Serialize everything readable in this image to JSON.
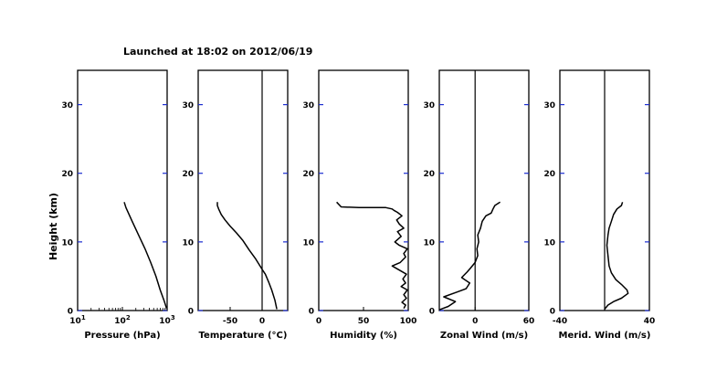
{
  "page": {
    "title": "Launched at 18:02 on 2012/06/19",
    "ylabel": "Height (km)"
  },
  "chart_data": [
    {
      "type": "line",
      "id": "pressure",
      "xlabel": "Pressure (hPa)",
      "xscale": "log",
      "xlim": [
        10,
        1000
      ],
      "ylim": [
        0,
        35
      ],
      "x_ticks": [
        10,
        100,
        1000
      ],
      "x_tick_labels": [
        "10",
        "10",
        "10"
      ],
      "x_tick_exponents": [
        "1",
        "2",
        "3"
      ],
      "y_ticks": [
        0,
        10,
        20,
        30
      ],
      "y_tick_labels": [
        "0",
        "10",
        "20",
        "30"
      ],
      "series": [
        {
          "x": [
            970,
            850,
            700,
            560,
            430,
            320,
            230,
            165,
            120,
            110
          ],
          "y": [
            0.3,
            1.5,
            3.0,
            5.0,
            7.0,
            9.0,
            11.0,
            13.0,
            15.0,
            15.8
          ]
        }
      ]
    },
    {
      "type": "line",
      "id": "temperature",
      "xlabel": "Temperature (°C)",
      "xlim": [
        -100,
        40
      ],
      "ylim": [
        0,
        35
      ],
      "x_ticks": [
        -50,
        0
      ],
      "x_tick_labels": [
        "-50",
        "0"
      ],
      "y_ticks": [
        0,
        10,
        20,
        30
      ],
      "y_tick_labels": [
        "0",
        "10",
        "20",
        "30"
      ],
      "vline": 0,
      "series": [
        {
          "x": [
            23,
            20,
            15,
            10,
            5,
            0,
            -10,
            -20,
            -30,
            -40,
            -50,
            -58,
            -64,
            -68,
            -70,
            -70
          ],
          "y": [
            0.2,
            1.5,
            3.0,
            4.2,
            5.3,
            6.0,
            7.5,
            8.8,
            10.2,
            11.3,
            12.3,
            13.2,
            14.0,
            14.8,
            15.3,
            15.8
          ]
        }
      ]
    },
    {
      "type": "line",
      "id": "humidity",
      "xlabel": "Humidity (%)",
      "xlim": [
        0,
        100
      ],
      "ylim": [
        0,
        35
      ],
      "x_ticks": [
        0,
        50,
        100
      ],
      "x_tick_labels": [
        "0",
        "50",
        "100"
      ],
      "y_ticks": [
        0,
        10,
        20,
        30
      ],
      "y_tick_labels": [
        "0",
        "10",
        "20",
        "30"
      ],
      "series": [
        {
          "x": [
            95,
            97,
            93,
            98,
            95,
            99,
            92,
            97,
            94,
            98,
            82,
            91,
            97,
            95,
            99,
            90,
            85,
            92,
            88,
            95,
            90,
            87,
            93,
            88,
            84,
            82,
            75,
            45,
            25,
            20
          ],
          "y": [
            0.3,
            0.8,
            1.2,
            1.8,
            2.3,
            3.0,
            3.5,
            4.0,
            4.6,
            5.3,
            6.5,
            7.0,
            7.8,
            8.3,
            9.0,
            9.5,
            10.0,
            10.8,
            11.5,
            12.0,
            12.6,
            13.2,
            13.8,
            14.3,
            14.6,
            14.8,
            15.0,
            15.0,
            15.1,
            15.8
          ]
        }
      ]
    },
    {
      "type": "line",
      "id": "zonal-wind",
      "xlabel": "Zonal Wind (m/s)",
      "xlim": [
        -40,
        60
      ],
      "ylim": [
        0,
        35
      ],
      "x_ticks": [
        0,
        60
      ],
      "x_tick_labels": [
        "0",
        "60"
      ],
      "y_ticks": [
        0,
        10,
        20,
        30
      ],
      "y_tick_labels": [
        "0",
        "10",
        "20",
        "30"
      ],
      "vline": 0,
      "series": [
        {
          "x": [
            -40,
            -30,
            -22,
            -35,
            -20,
            -10,
            -6,
            -15,
            -9,
            -5,
            0,
            3,
            2,
            4,
            3,
            6,
            8,
            12,
            18,
            20,
            22,
            28
          ],
          "y": [
            0.1,
            0.6,
            1.3,
            2.0,
            2.7,
            3.2,
            4.0,
            4.8,
            5.6,
            6.2,
            7.0,
            8.0,
            9.0,
            10.0,
            11.0,
            12.0,
            13.0,
            13.8,
            14.2,
            14.8,
            15.3,
            15.8
          ]
        }
      ]
    },
    {
      "type": "line",
      "id": "merid-wind",
      "xlabel": "Merid. Wind (m/s)",
      "xlim": [
        -40,
        40
      ],
      "ylim": [
        0,
        35
      ],
      "x_ticks": [
        -40,
        40
      ],
      "x_tick_labels": [
        "-40",
        "40"
      ],
      "y_ticks": [
        0,
        10,
        20,
        30
      ],
      "y_tick_labels": [
        "0",
        "10",
        "20",
        "30"
      ],
      "vline": 0,
      "series": [
        {
          "x": [
            0,
            3,
            8,
            15,
            21,
            20,
            15,
            10,
            6,
            4,
            3,
            2,
            3,
            4,
            6,
            8,
            11,
            15,
            16
          ],
          "y": [
            0.2,
            0.8,
            1.3,
            1.8,
            2.5,
            3.0,
            3.8,
            4.5,
            5.5,
            6.5,
            8.0,
            9.5,
            11.0,
            12.0,
            13.0,
            14.0,
            14.8,
            15.3,
            15.8
          ]
        }
      ]
    }
  ]
}
